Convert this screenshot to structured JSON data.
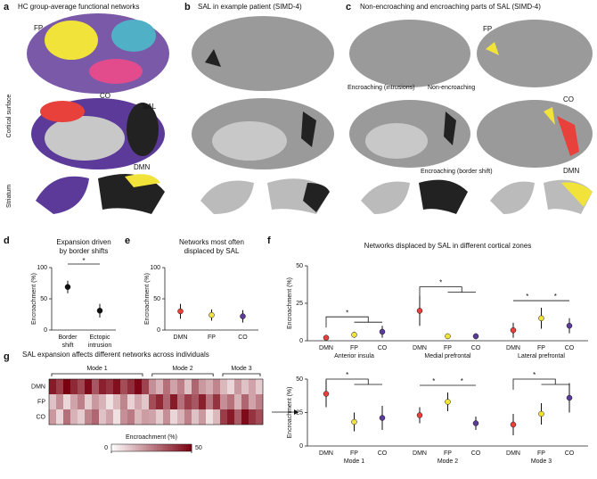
{
  "panels": {
    "a": {
      "letter": "a",
      "title": "HC group-average functional networks",
      "labels": [
        "FP",
        "CO",
        "SAL",
        "DMN"
      ],
      "side": [
        "Cortical surface",
        "Striatum"
      ]
    },
    "b": {
      "letter": "b",
      "title": "SAL in example patient (SIMD-4)"
    },
    "c": {
      "letter": "c",
      "title": "Non-encroaching and encroaching parts of SAL (SIMD-4)",
      "callouts": [
        "Encroaching (intrusions)",
        "Non-encroaching",
        "Encroaching (border shift)"
      ],
      "labels": [
        "FP",
        "CO",
        "DMN"
      ]
    },
    "letters": [
      "d",
      "e",
      "f",
      "g"
    ]
  },
  "chart_data": [
    {
      "type": "dotplot",
      "title": "Expansion driven by border shifts",
      "ylabel": "Encroachment (%)",
      "categories": [
        "Border shift",
        "Ectopic intrusion"
      ],
      "values": [
        69,
        31
      ],
      "errors": [
        10,
        11
      ],
      "colors": [
        "#111111",
        "#111111"
      ],
      "ylim": [
        0,
        100
      ],
      "yticks": [
        0,
        50,
        100
      ],
      "annotations": [
        "*"
      ]
    },
    {
      "type": "dotplot",
      "title": "Networks most often displaced by SAL",
      "ylabel": "Encroachment (%)",
      "categories": [
        "DMN",
        "FP",
        "CO"
      ],
      "values": [
        30,
        24,
        22
      ],
      "errors": [
        12,
        9,
        10
      ],
      "colors": [
        "#e8413c",
        "#f2e33a",
        "#5b3a99"
      ],
      "ylim": [
        0,
        100
      ],
      "yticks": [
        0,
        50,
        100
      ],
      "annotations": []
    },
    {
      "type": "grouped_dotplot",
      "title": "Networks displaced by SAL in different cortical zones",
      "ylabel": "Encroachment (%)",
      "categories": [
        "DMN",
        "FP",
        "CO"
      ],
      "colors": [
        "#e8413c",
        "#f2e33a",
        "#5b3a99"
      ],
      "ylim": [
        0,
        50
      ],
      "yticks": [
        0,
        25,
        50
      ],
      "groups": [
        {
          "name": "Anterior insula",
          "values": [
            2,
            4,
            6
          ],
          "errors": [
            1,
            2,
            4
          ],
          "annotations": [
            "*"
          ]
        },
        {
          "name": "Medial prefrontal",
          "values": [
            20,
            3,
            3
          ],
          "errors": [
            10,
            1,
            2
          ],
          "annotations": [
            "*"
          ]
        },
        {
          "name": "Lateral prefrontal",
          "values": [
            7,
            15,
            10
          ],
          "errors": [
            5,
            7,
            5
          ],
          "annotations": [
            "*",
            "*"
          ]
        }
      ]
    },
    {
      "type": "heatmap",
      "title": "SAL expansion affects different networks across individuals",
      "rows": [
        "DMN",
        "FP",
        "CO"
      ],
      "modes": [
        "Mode 1",
        "Mode 2",
        "Mode 3"
      ],
      "colorbar_label": "Encroachment (%)",
      "clim": [
        0,
        50
      ],
      "cticks": [
        0,
        50
      ],
      "values": [
        [
          45,
          38,
          50,
          42,
          36,
          48,
          33,
          44,
          40,
          47,
          35,
          41,
          49,
          37,
          22,
          15,
          28,
          18,
          25,
          12,
          30,
          20,
          16,
          24,
          14,
          8,
          20,
          12,
          18,
          10
        ],
        [
          12,
          22,
          8,
          18,
          25,
          10,
          20,
          15,
          6,
          14,
          24,
          9,
          17,
          11,
          35,
          42,
          30,
          45,
          28,
          38,
          33,
          44,
          27,
          40,
          22,
          28,
          15,
          30,
          18,
          25
        ],
        [
          20,
          8,
          28,
          15,
          10,
          24,
          30,
          12,
          18,
          6,
          22,
          26,
          14,
          19,
          18,
          10,
          22,
          8,
          15,
          25,
          12,
          20,
          6,
          14,
          38,
          45,
          32,
          48,
          40,
          35
        ]
      ]
    },
    {
      "type": "grouped_dotplot",
      "ylabel": "Encroachment (%)",
      "categories": [
        "DMN",
        "FP",
        "CO"
      ],
      "colors": [
        "#e8413c",
        "#f2e33a",
        "#5b3a99"
      ],
      "ylim": [
        0,
        50
      ],
      "yticks": [
        0,
        25,
        50
      ],
      "groups": [
        {
          "name": "Mode 1",
          "values": [
            39,
            18,
            21
          ],
          "errors": [
            10,
            7,
            9
          ],
          "annotations": [
            "*"
          ]
        },
        {
          "name": "Mode 2",
          "values": [
            23,
            33,
            17
          ],
          "errors": [
            6,
            7,
            5
          ],
          "annotations": [
            "*",
            "*"
          ]
        },
        {
          "name": "Mode 3",
          "values": [
            16,
            24,
            36
          ],
          "errors": [
            8,
            8,
            11
          ],
          "annotations": [
            "*"
          ]
        }
      ]
    }
  ]
}
